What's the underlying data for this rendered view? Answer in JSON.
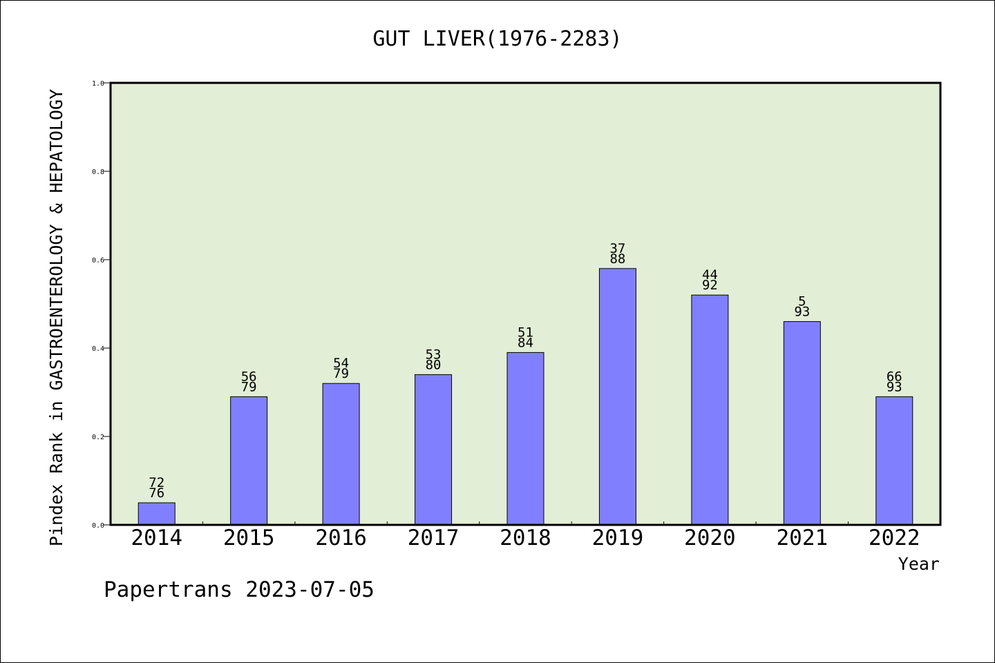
{
  "chart_data": {
    "type": "bar",
    "title": "GUT LIVER(1976-2283)",
    "ylabel": "Pindex Rank in GASTROENTEROLOGY & HEPATOLOGY",
    "xlabel": "Year",
    "footer": "Papertrans 2023-07-05",
    "ylim": [
      0,
      1.0
    ],
    "yticks": [
      "0.0",
      "0.2",
      "0.4",
      "0.6",
      "0.8",
      "1.0"
    ],
    "categories": [
      "2014",
      "2015",
      "2016",
      "2017",
      "2018",
      "2019",
      "2020",
      "2021",
      "2022"
    ],
    "values": [
      0.05,
      0.29,
      0.32,
      0.34,
      0.39,
      0.58,
      0.52,
      0.46,
      0.29
    ],
    "label_top": [
      "72",
      "56",
      "54",
      "53",
      "51",
      "37",
      "44",
      "5",
      "66"
    ],
    "label_bottom": [
      "76",
      "79",
      "79",
      "80",
      "84",
      "88",
      "92",
      "93",
      "93"
    ],
    "grid": false,
    "colors": {
      "bar_fill": "#8080ff",
      "plot_background": "#e2efd6",
      "text": "#000000"
    }
  }
}
